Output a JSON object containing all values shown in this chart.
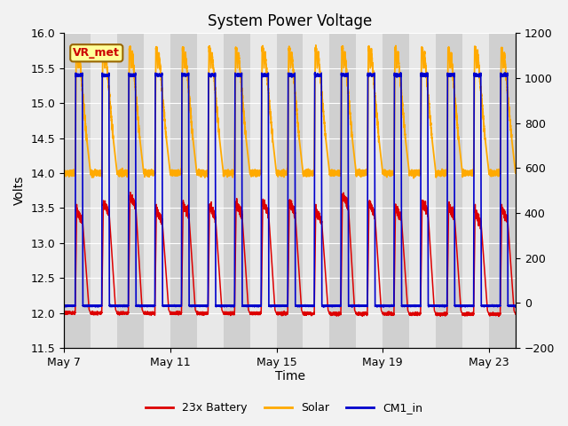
{
  "title": "System Power Voltage",
  "xlabel": "Time",
  "ylabel_left": "Volts",
  "ylim_left": [
    11.5,
    16.0
  ],
  "ylim_right": [
    -200,
    1200
  ],
  "yticks_left": [
    11.5,
    12.0,
    12.5,
    13.0,
    13.5,
    14.0,
    14.5,
    15.0,
    15.5,
    16.0
  ],
  "yticks_right": [
    -200,
    0,
    200,
    400,
    600,
    800,
    1000,
    1200
  ],
  "xtick_labels": [
    "May 7",
    "May 11",
    "May 15",
    "May 19",
    "May 23"
  ],
  "xtick_positions": [
    0,
    4,
    8,
    12,
    16
  ],
  "num_cycles": 17,
  "battery_color": "#dd0000",
  "solar_color": "#ffaa00",
  "cm1_color": "#0000cc",
  "legend_labels": [
    "23x Battery",
    "Solar",
    "CM1_in"
  ],
  "annotation_text": "VR_met",
  "annotation_bg": "#ffff99",
  "annotation_border": "#996600",
  "bg_light": "#e8e8e8",
  "bg_dark": "#d0d0d0",
  "grid_color": "#ffffff",
  "title_fontsize": 12
}
